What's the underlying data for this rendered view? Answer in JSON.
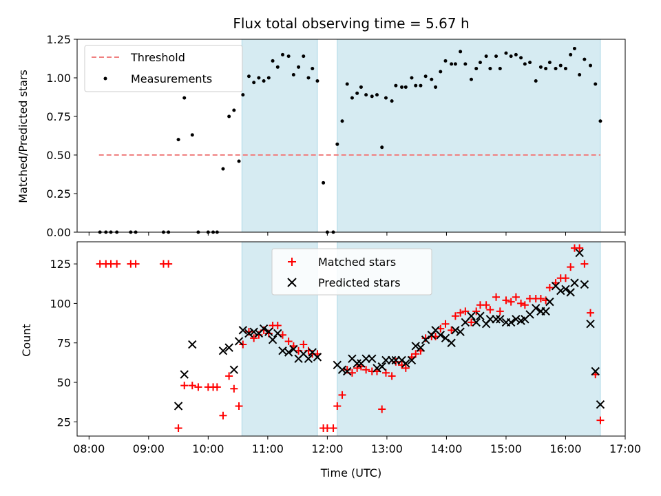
{
  "chart_data": {
    "type": "scatter",
    "title": "Flux total observing time = 5.67 h",
    "colors": {
      "threshold": "#f08080",
      "measurements": "#000000",
      "matched": "#ff0000",
      "predicted": "#000000",
      "shade": "#add8e6"
    },
    "shaded_intervals": [
      [
        "10:34",
        "11:50"
      ],
      [
        "12:10",
        "16:35"
      ]
    ],
    "x_label": "Time (UTC)",
    "x_ticks": [
      "08:00",
      "09:00",
      "10:00",
      "11:00",
      "12:00",
      "13:00",
      "14:00",
      "15:00",
      "16:00",
      "17:00"
    ],
    "x_range": [
      "07:48",
      "17:00"
    ],
    "top": {
      "ylabel": "Matched/Predicted stars",
      "ylim": [
        0,
        1.25
      ],
      "yticks": [
        "0.00",
        "0.25",
        "0.50",
        "0.75",
        "1.00",
        "1.25"
      ],
      "threshold": {
        "name": "Threshold",
        "value": 0.5,
        "x_start": "08:10",
        "x_end": "16:35"
      },
      "measurements": {
        "name": "Measurements",
        "points": [
          [
            "08:11",
            0
          ],
          [
            "08:17",
            0
          ],
          [
            "08:22",
            0
          ],
          [
            "08:28",
            0
          ],
          [
            "08:42",
            0
          ],
          [
            "08:47",
            0
          ],
          [
            "09:15",
            0
          ],
          [
            "09:20",
            0
          ],
          [
            "09:30",
            0.6
          ],
          [
            "09:36",
            0.87
          ],
          [
            "09:44",
            0.63
          ],
          [
            "09:50",
            0
          ],
          [
            "10:00",
            0
          ],
          [
            "10:05",
            0
          ],
          [
            "10:09",
            0
          ],
          [
            "10:15",
            0.41
          ],
          [
            "10:21",
            0.75
          ],
          [
            "10:26",
            0.79
          ],
          [
            "10:31",
            0.46
          ],
          [
            "10:35",
            0.89
          ],
          [
            "10:41",
            1.01
          ],
          [
            "10:46",
            0.97
          ],
          [
            "10:51",
            1.0
          ],
          [
            "10:56",
            0.98
          ],
          [
            "11:01",
            1.0
          ],
          [
            "11:05",
            1.11
          ],
          [
            "11:10",
            1.07
          ],
          [
            "11:15",
            1.15
          ],
          [
            "11:21",
            1.14
          ],
          [
            "11:26",
            1.02
          ],
          [
            "11:31",
            1.07
          ],
          [
            "11:36",
            1.14
          ],
          [
            "11:41",
            1.0
          ],
          [
            "11:45",
            1.06
          ],
          [
            "11:50",
            0.98
          ],
          [
            "11:56",
            0.32
          ],
          [
            "12:00",
            0
          ],
          [
            "12:06",
            0
          ],
          [
            "12:10",
            0.57
          ],
          [
            "12:15",
            0.72
          ],
          [
            "12:20",
            0.96
          ],
          [
            "12:25",
            0.87
          ],
          [
            "12:30",
            0.9
          ],
          [
            "12:34",
            0.94
          ],
          [
            "12:39",
            0.89
          ],
          [
            "12:45",
            0.88
          ],
          [
            "12:50",
            0.89
          ],
          [
            "12:55",
            0.55
          ],
          [
            "12:59",
            0.87
          ],
          [
            "13:05",
            0.85
          ],
          [
            "13:09",
            0.95
          ],
          [
            "13:15",
            0.94
          ],
          [
            "13:19",
            0.94
          ],
          [
            "13:25",
            1.0
          ],
          [
            "13:29",
            0.95
          ],
          [
            "13:34",
            0.95
          ],
          [
            "13:39",
            1.01
          ],
          [
            "13:45",
            0.99
          ],
          [
            "13:49",
            0.94
          ],
          [
            "13:54",
            1.04
          ],
          [
            "13:59",
            1.11
          ],
          [
            "14:05",
            1.09
          ],
          [
            "14:09",
            1.09
          ],
          [
            "14:14",
            1.17
          ],
          [
            "14:19",
            1.09
          ],
          [
            "14:25",
            0.99
          ],
          [
            "14:30",
            1.06
          ],
          [
            "14:34",
            1.1
          ],
          [
            "14:40",
            1.14
          ],
          [
            "14:44",
            1.06
          ],
          [
            "14:50",
            1.14
          ],
          [
            "14:54",
            1.06
          ],
          [
            "15:00",
            1.16
          ],
          [
            "15:05",
            1.14
          ],
          [
            "15:10",
            1.15
          ],
          [
            "15:15",
            1.13
          ],
          [
            "15:19",
            1.09
          ],
          [
            "15:24",
            1.1
          ],
          [
            "15:30",
            0.98
          ],
          [
            "15:35",
            1.07
          ],
          [
            "15:40",
            1.06
          ],
          [
            "15:44",
            1.1
          ],
          [
            "15:50",
            1.06
          ],
          [
            "15:55",
            1.08
          ],
          [
            "16:00",
            1.06
          ],
          [
            "16:05",
            1.15
          ],
          [
            "16:09",
            1.19
          ],
          [
            "16:14",
            1.02
          ],
          [
            "16:19",
            1.12
          ],
          [
            "16:25",
            1.08
          ],
          [
            "16:30",
            0.96
          ],
          [
            "16:35",
            0.72
          ]
        ]
      }
    },
    "bottom": {
      "ylabel": "Count",
      "ylim": [
        16,
        139
      ],
      "yticks": [
        "25",
        "50",
        "75",
        "100",
        "125"
      ],
      "matched": {
        "name": "Matched stars",
        "points": [
          [
            "08:11",
            125
          ],
          [
            "08:17",
            125
          ],
          [
            "08:22",
            125
          ],
          [
            "08:28",
            125
          ],
          [
            "08:42",
            125
          ],
          [
            "08:47",
            125
          ],
          [
            "09:15",
            125
          ],
          [
            "09:20",
            125
          ],
          [
            "09:30",
            21
          ],
          [
            "09:36",
            48
          ],
          [
            "09:44",
            48
          ],
          [
            "09:50",
            47
          ],
          [
            "10:00",
            47
          ],
          [
            "10:05",
            47
          ],
          [
            "10:09",
            47
          ],
          [
            "10:15",
            29
          ],
          [
            "10:21",
            54
          ],
          [
            "10:26",
            46
          ],
          [
            "10:31",
            35
          ],
          [
            "10:35",
            74
          ],
          [
            "10:41",
            82
          ],
          [
            "10:46",
            78
          ],
          [
            "10:51",
            80
          ],
          [
            "10:56",
            83
          ],
          [
            "11:01",
            81
          ],
          [
            "11:05",
            86
          ],
          [
            "11:10",
            86
          ],
          [
            "11:15",
            80
          ],
          [
            "11:21",
            76
          ],
          [
            "11:26",
            73
          ],
          [
            "11:31",
            70
          ],
          [
            "11:36",
            74
          ],
          [
            "11:41",
            70
          ],
          [
            "11:45",
            68
          ],
          [
            "11:50",
            68
          ],
          [
            "11:56",
            21
          ],
          [
            "12:00",
            21
          ],
          [
            "12:06",
            21
          ],
          [
            "12:10",
            35
          ],
          [
            "12:15",
            42
          ],
          [
            "12:20",
            58
          ],
          [
            "12:25",
            56
          ],
          [
            "12:30",
            59
          ],
          [
            "12:34",
            60
          ],
          [
            "12:39",
            58
          ],
          [
            "12:45",
            57
          ],
          [
            "12:50",
            57
          ],
          [
            "12:55",
            33
          ],
          [
            "12:59",
            56
          ],
          [
            "13:05",
            54
          ],
          [
            "13:09",
            63
          ],
          [
            "13:15",
            61
          ],
          [
            "13:19",
            59
          ],
          [
            "13:25",
            66
          ],
          [
            "13:29",
            68
          ],
          [
            "13:34",
            70
          ],
          [
            "13:39",
            78
          ],
          [
            "13:45",
            79
          ],
          [
            "13:49",
            79
          ],
          [
            "13:54",
            84
          ],
          [
            "13:59",
            87
          ],
          [
            "14:05",
            83
          ],
          [
            "14:09",
            92
          ],
          [
            "14:14",
            94
          ],
          [
            "14:19",
            95
          ],
          [
            "14:25",
            88
          ],
          [
            "14:30",
            95
          ],
          [
            "14:34",
            99
          ],
          [
            "14:40",
            99
          ],
          [
            "14:44",
            96
          ],
          [
            "14:50",
            104
          ],
          [
            "14:54",
            95
          ],
          [
            "15:00",
            102
          ],
          [
            "15:05",
            101
          ],
          [
            "15:10",
            104
          ],
          [
            "15:15",
            100
          ],
          [
            "15:19",
            99
          ],
          [
            "15:24",
            103
          ],
          [
            "15:30",
            103
          ],
          [
            "15:35",
            103
          ],
          [
            "15:40",
            102
          ],
          [
            "15:44",
            110
          ],
          [
            "15:50",
            113
          ],
          [
            "15:55",
            116
          ],
          [
            "16:00",
            116
          ],
          [
            "16:05",
            123
          ],
          [
            "16:09",
            135
          ],
          [
            "16:14",
            135
          ],
          [
            "16:19",
            125
          ],
          [
            "16:25",
            94
          ],
          [
            "16:30",
            55
          ],
          [
            "16:35",
            26
          ]
        ]
      },
      "predicted": {
        "name": "Predicted stars",
        "points": [
          [
            "09:30",
            35
          ],
          [
            "09:36",
            55
          ],
          [
            "09:44",
            74
          ],
          [
            "10:15",
            70
          ],
          [
            "10:21",
            72
          ],
          [
            "10:26",
            58
          ],
          [
            "10:31",
            76
          ],
          [
            "10:35",
            83
          ],
          [
            "10:41",
            81
          ],
          [
            "10:46",
            82
          ],
          [
            "10:51",
            81
          ],
          [
            "10:56",
            84
          ],
          [
            "11:01",
            82
          ],
          [
            "11:05",
            77
          ],
          [
            "11:10",
            81
          ],
          [
            "11:15",
            70
          ],
          [
            "11:21",
            69
          ],
          [
            "11:26",
            71
          ],
          [
            "11:31",
            65
          ],
          [
            "11:36",
            68
          ],
          [
            "11:41",
            65
          ],
          [
            "11:45",
            69
          ],
          [
            "11:50",
            66
          ],
          [
            "12:10",
            61
          ],
          [
            "12:15",
            58
          ],
          [
            "12:20",
            57
          ],
          [
            "12:25",
            65
          ],
          [
            "12:30",
            62
          ],
          [
            "12:34",
            62
          ],
          [
            "12:39",
            65
          ],
          [
            "12:45",
            65
          ],
          [
            "12:50",
            59
          ],
          [
            "12:55",
            60
          ],
          [
            "12:59",
            64
          ],
          [
            "13:05",
            64
          ],
          [
            "13:09",
            64
          ],
          [
            "13:15",
            64
          ],
          [
            "13:19",
            62
          ],
          [
            "13:25",
            64
          ],
          [
            "13:29",
            73
          ],
          [
            "13:34",
            72
          ],
          [
            "13:39",
            77
          ],
          [
            "13:45",
            80
          ],
          [
            "13:49",
            83
          ],
          [
            "13:54",
            80
          ],
          [
            "13:59",
            78
          ],
          [
            "14:05",
            75
          ],
          [
            "14:09",
            83
          ],
          [
            "14:14",
            82
          ],
          [
            "14:19",
            88
          ],
          [
            "14:25",
            92
          ],
          [
            "14:30",
            88
          ],
          [
            "14:34",
            92
          ],
          [
            "14:40",
            87
          ],
          [
            "14:44",
            90
          ],
          [
            "14:50",
            90
          ],
          [
            "14:54",
            90
          ],
          [
            "15:00",
            88
          ],
          [
            "15:05",
            88
          ],
          [
            "15:10",
            90
          ],
          [
            "15:15",
            89
          ],
          [
            "15:19",
            90
          ],
          [
            "15:24",
            93
          ],
          [
            "15:30",
            97
          ],
          [
            "15:35",
            95
          ],
          [
            "15:40",
            95
          ],
          [
            "15:44",
            101
          ],
          [
            "15:50",
            111
          ],
          [
            "15:55",
            108
          ],
          [
            "16:00",
            109
          ],
          [
            "16:05",
            107
          ],
          [
            "16:09",
            113
          ],
          [
            "16:14",
            132
          ],
          [
            "16:19",
            112
          ],
          [
            "16:25",
            87
          ],
          [
            "16:30",
            57
          ],
          [
            "16:35",
            36
          ]
        ]
      }
    }
  }
}
